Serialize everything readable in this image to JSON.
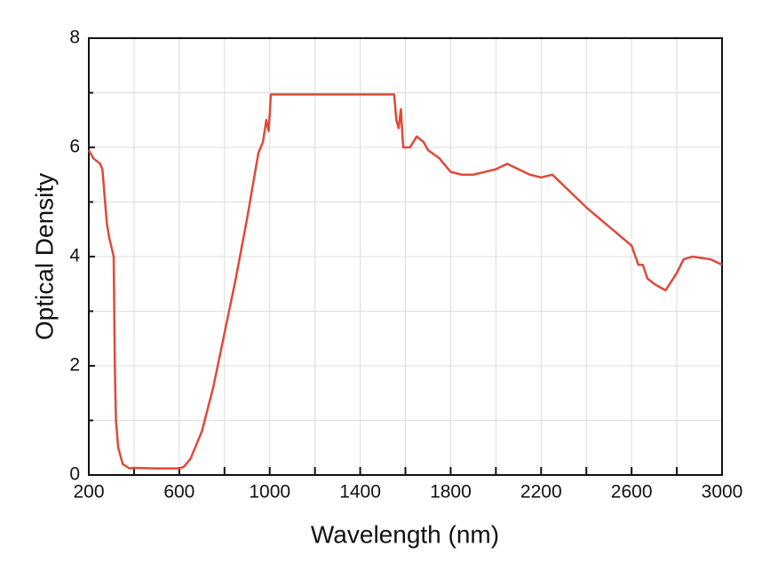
{
  "chart_data": {
    "type": "line",
    "x_label": "Wavelength (nm)",
    "y_label": "Optical Density",
    "x": [
      200,
      220,
      250,
      260,
      280,
      290,
      310,
      315,
      320,
      330,
      350,
      380,
      400,
      500,
      600,
      620,
      650,
      700,
      750,
      800,
      850,
      900,
      950,
      970,
      985,
      995,
      1000,
      1005,
      1100,
      1300,
      1550,
      1560,
      1570,
      1580,
      1590,
      1620,
      1650,
      1680,
      1700,
      1750,
      1800,
      1850,
      1900,
      1950,
      2000,
      2050,
      2100,
      2150,
      2200,
      2250,
      2300,
      2350,
      2400,
      2500,
      2600,
      2630,
      2650,
      2670,
      2700,
      2750,
      2800,
      2830,
      2870,
      2900,
      2950,
      3000
    ],
    "series": [
      {
        "name": "Optical Density",
        "color": "#e0493a",
        "values": [
          5.95,
          5.8,
          5.7,
          5.6,
          4.6,
          4.35,
          4.0,
          2.0,
          1.0,
          0.5,
          0.2,
          0.12,
          0.13,
          0.12,
          0.12,
          0.15,
          0.3,
          0.8,
          1.6,
          2.6,
          3.6,
          4.7,
          5.9,
          6.1,
          6.5,
          6.3,
          6.6,
          6.97,
          6.97,
          6.97,
          6.97,
          6.5,
          6.35,
          6.7,
          6.0,
          6.0,
          6.2,
          6.1,
          5.95,
          5.8,
          5.55,
          5.5,
          5.5,
          5.55,
          5.6,
          5.7,
          5.6,
          5.5,
          5.45,
          5.5,
          5.3,
          5.1,
          4.9,
          4.55,
          4.2,
          3.85,
          3.85,
          3.6,
          3.5,
          3.38,
          3.7,
          3.95,
          4.0,
          3.98,
          3.95,
          3.85
        ]
      }
    ],
    "xlim": [
      200,
      3000
    ],
    "ylim": [
      0,
      8
    ],
    "xticks": [
      200,
      600,
      1000,
      1400,
      1800,
      2200,
      2600,
      3000
    ],
    "xminorticks": [
      400,
      800,
      1200,
      1600,
      2000,
      2400,
      2800
    ],
    "yticks": [
      0,
      2,
      4,
      6,
      8
    ],
    "yminorticks": [
      1,
      3,
      5,
      7
    ],
    "grid": true
  }
}
